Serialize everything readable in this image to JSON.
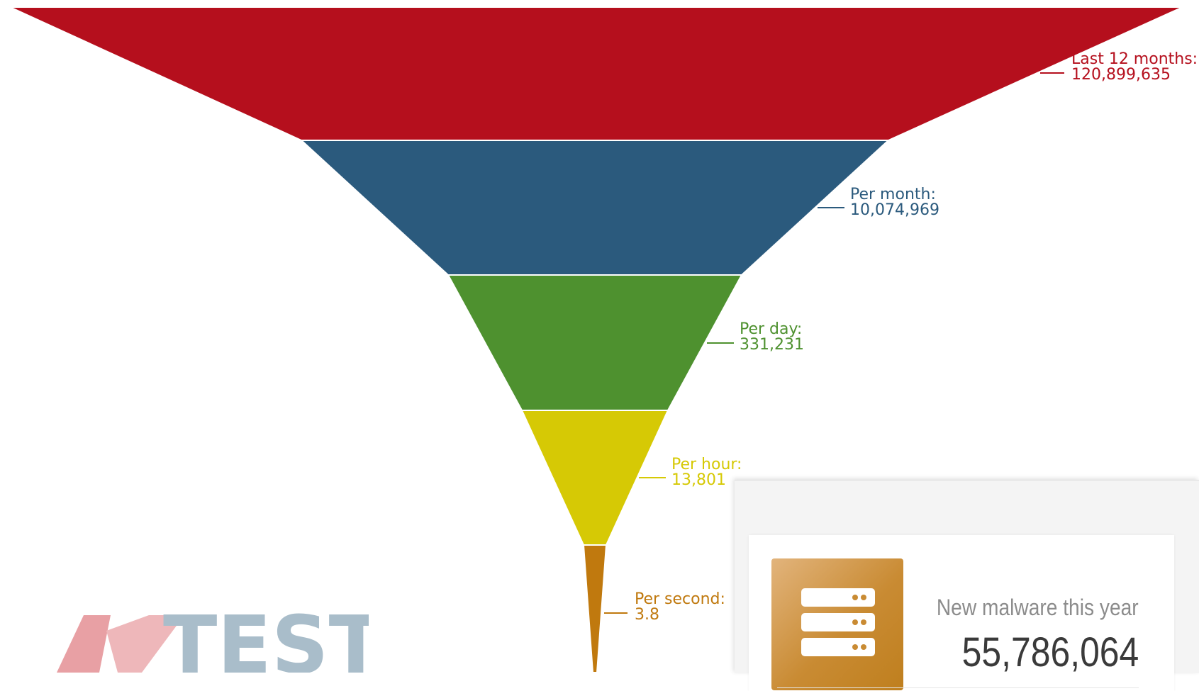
{
  "chart_data": {
    "type": "funnel",
    "stages": [
      {
        "label": "Last 12 months:",
        "value": 120899635,
        "value_text": "120,899,635",
        "color": "#b50f1d"
      },
      {
        "label": "Per month:",
        "value": 10074969,
        "value_text": "10,074,969",
        "color": "#2b5a7d"
      },
      {
        "label": "Per day:",
        "value": 331231,
        "value_text": "331,231",
        "color": "#4e912f"
      },
      {
        "label": "Per hour:",
        "value": 13801,
        "value_text": "13,801",
        "color": "#d6c905"
      },
      {
        "label": "Per second:",
        "value": 3.8,
        "value_text": "3.8",
        "color": "#c0790e"
      }
    ]
  },
  "logo": {
    "text_left": "AV",
    "text_right": "TEST",
    "colors": {
      "left": "#e8a0a4",
      "right": "#a9bdca"
    }
  },
  "stats_card": {
    "icon": "server-icon",
    "title": "New malware this year",
    "value": "55,786,064"
  }
}
